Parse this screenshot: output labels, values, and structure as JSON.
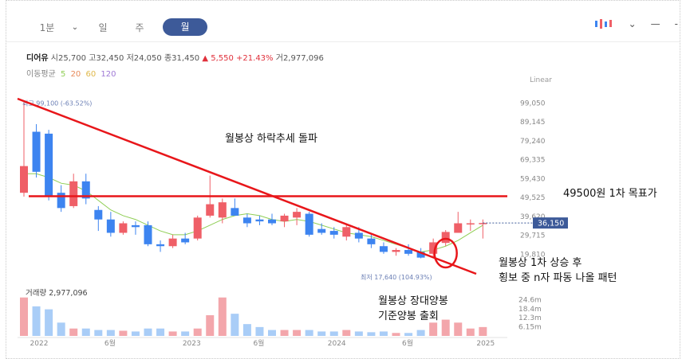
{
  "toolbar": {
    "tabs": [
      {
        "label": "1분"
      },
      {
        "label": "일"
      },
      {
        "label": "주"
      },
      {
        "label": "월",
        "active": true
      }
    ],
    "minus_label": "—",
    "more_label": "-"
  },
  "info": {
    "name": "디어유",
    "open_label": "시",
    "open": "25,700",
    "high_label": "고",
    "high": "32,450",
    "low_label": "저",
    "low": "24,050",
    "close_label": "종",
    "close": "31,450",
    "change": "▲ 5,550 +21.43%",
    "volume_label": "거",
    "volume": "2,977,096"
  },
  "ma": {
    "label": "이동평균",
    "periods": [
      "5",
      "20",
      "60",
      "120"
    ],
    "colors": [
      "#8fce54",
      "#e88a5a",
      "#e0b84a",
      "#a07ad6"
    ]
  },
  "scale_label": "Linear",
  "colors": {
    "up": "#ef5f67",
    "down": "#3d84f0",
    "trend": "#e8161a",
    "volume_up": "#f3a6ab",
    "volume_down": "#a9cdf7"
  },
  "chart_data": {
    "type": "candlestick",
    "timeframe": "monthly",
    "ylim": [
      12000,
      103000
    ],
    "y_ticks": [
      "99,050",
      "89,145",
      "79,240",
      "69,335",
      "59,430",
      "49,525",
      "39,620",
      "29,715",
      "19,810"
    ],
    "x_ticks": [
      "2022",
      "6월",
      "2023",
      "6월",
      "2024",
      "6월",
      "2025"
    ],
    "last_price": "36,150",
    "high_marker": "최고 99,100 (-63.52%)",
    "low_marker": "최저 17,640 (104.93%)",
    "volume_label": "거래량 2,977,096",
    "volume_ticks": [
      "24.6m",
      "18.4m",
      "12.3m",
      "6.15m"
    ],
    "volume_max": 28000000,
    "candles": [
      {
        "o": 52000,
        "h": 99100,
        "l": 50000,
        "c": 66000
      },
      {
        "o": 84000,
        "h": 88000,
        "l": 60000,
        "c": 63000
      },
      {
        "o": 83000,
        "h": 85000,
        "l": 48000,
        "c": 50000
      },
      {
        "o": 52000,
        "h": 56000,
        "l": 42000,
        "c": 44000
      },
      {
        "o": 45000,
        "h": 62000,
        "l": 44000,
        "c": 58000
      },
      {
        "o": 58000,
        "h": 62000,
        "l": 46000,
        "c": 49000
      },
      {
        "o": 43000,
        "h": 45000,
        "l": 32000,
        "c": 38000
      },
      {
        "o": 38000,
        "h": 42000,
        "l": 29000,
        "c": 31000
      },
      {
        "o": 31000,
        "h": 37000,
        "l": 30000,
        "c": 36000
      },
      {
        "o": 35000,
        "h": 37000,
        "l": 30000,
        "c": 34000
      },
      {
        "o": 35000,
        "h": 37000,
        "l": 24000,
        "c": 25000
      },
      {
        "o": 25000,
        "h": 27000,
        "l": 21000,
        "c": 24000
      },
      {
        "o": 24000,
        "h": 30000,
        "l": 23000,
        "c": 28000
      },
      {
        "o": 28000,
        "h": 31000,
        "l": 25000,
        "c": 26000
      },
      {
        "o": 28000,
        "h": 40000,
        "l": 27000,
        "c": 39000
      },
      {
        "o": 40000,
        "h": 61000,
        "l": 39000,
        "c": 46000
      },
      {
        "o": 39000,
        "h": 49000,
        "l": 36000,
        "c": 47000
      },
      {
        "o": 44000,
        "h": 49000,
        "l": 40000,
        "c": 40000
      },
      {
        "o": 39000,
        "h": 41000,
        "l": 34000,
        "c": 36000
      },
      {
        "o": 38000,
        "h": 40000,
        "l": 35000,
        "c": 37000
      },
      {
        "o": 38000,
        "h": 41000,
        "l": 35000,
        "c": 36000
      },
      {
        "o": 37000,
        "h": 41000,
        "l": 34000,
        "c": 40000
      },
      {
        "o": 39000,
        "h": 44000,
        "l": 35000,
        "c": 42000
      },
      {
        "o": 41000,
        "h": 42000,
        "l": 29000,
        "c": 30000
      },
      {
        "o": 33000,
        "h": 36000,
        "l": 30000,
        "c": 31000
      },
      {
        "o": 32000,
        "h": 34000,
        "l": 28000,
        "c": 30000
      },
      {
        "o": 29000,
        "h": 36000,
        "l": 27000,
        "c": 34000
      },
      {
        "o": 31000,
        "h": 34000,
        "l": 26000,
        "c": 28000
      },
      {
        "o": 28000,
        "h": 30000,
        "l": 23000,
        "c": 25000
      },
      {
        "o": 24000,
        "h": 26000,
        "l": 20000,
        "c": 21000
      },
      {
        "o": 21000,
        "h": 23000,
        "l": 19000,
        "c": 22000
      },
      {
        "o": 22000,
        "h": 25000,
        "l": 19000,
        "c": 20000
      },
      {
        "o": 21000,
        "h": 23000,
        "l": 17640,
        "c": 18000
      },
      {
        "o": 20000,
        "h": 28000,
        "l": 18000,
        "c": 26000
      },
      {
        "o": 25700,
        "h": 32450,
        "l": 24050,
        "c": 31450
      },
      {
        "o": 31000,
        "h": 42000,
        "l": 31000,
        "c": 36000
      },
      {
        "o": 36000,
        "h": 38000,
        "l": 32000,
        "c": 36000
      },
      {
        "o": 36000,
        "h": 38000,
        "l": 28000,
        "c": 36150
      }
    ],
    "ma5": [
      62000,
      62000,
      60000,
      57000,
      56000,
      53000,
      48000,
      43000,
      40000,
      38000,
      35000,
      32000,
      30000,
      30000,
      32000,
      35000,
      38000,
      40000,
      41000,
      40000,
      38000,
      37000,
      38000,
      37000,
      35000,
      33000,
      31000,
      30000,
      29000,
      27000,
      25000,
      23000,
      21000,
      22000,
      24000,
      27000,
      31000,
      35000
    ],
    "volumes": [
      26000000,
      20000000,
      18000000,
      9000000,
      5000000,
      5000000,
      4000000,
      4000000,
      3500000,
      3000000,
      5000000,
      5000000,
      3000000,
      3000000,
      5000000,
      14000000,
      26000000,
      15000000,
      8000000,
      6000000,
      4000000,
      4000000,
      4000000,
      4000000,
      3000000,
      3000000,
      4000000,
      3000000,
      2500000,
      3000000,
      2000000,
      2000000,
      4000000,
      9000000,
      11000000,
      9000000,
      5000000,
      6000000
    ],
    "resistance": 50200
  },
  "annotations": {
    "breakout": "월봉상 하락추세 돌파",
    "target": "49500원 1차 목표가",
    "pattern_1": "월봉상 1차 상승 후",
    "pattern_2": "횡보 중 n자 파동 나올 패턴",
    "volume_1": "월봉상 장대양봉",
    "volume_2": "기준양봉 출회"
  }
}
